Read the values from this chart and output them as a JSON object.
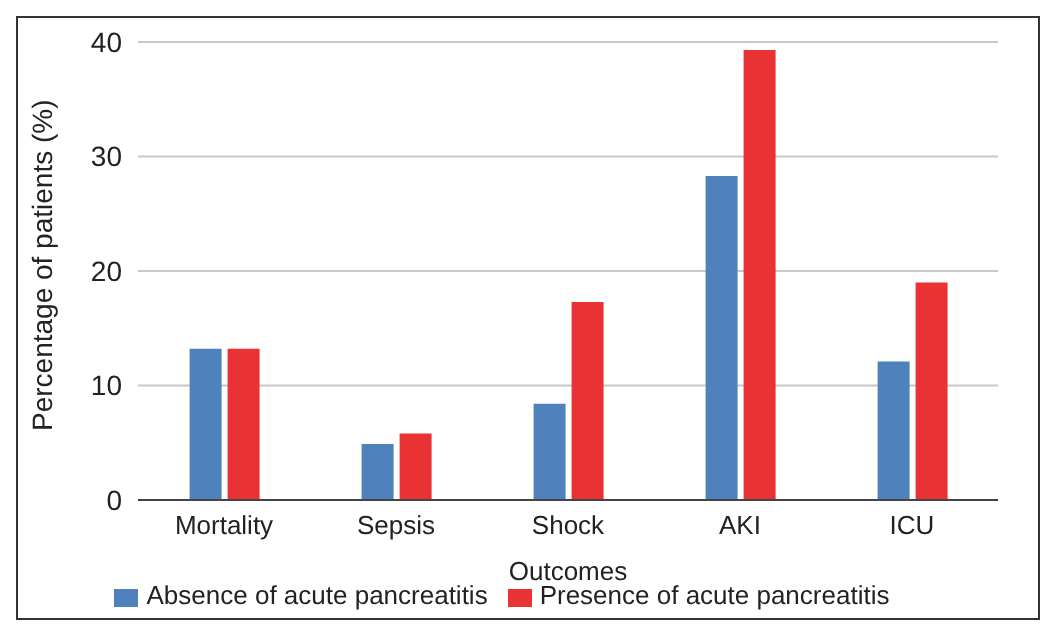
{
  "chart_data": {
    "type": "bar",
    "xlabel": "Outcomes",
    "ylabel": "Percentage of patients (%)",
    "categories": [
      "Mortality",
      "Sepsis",
      "Shock",
      "AKI",
      "ICU"
    ],
    "series": [
      {
        "name": "Absence of acute pancreatitis",
        "color": "#4f81bd",
        "values": [
          13.2,
          4.9,
          8.4,
          28.3,
          12.1
        ]
      },
      {
        "name": "Presence of acute pancreatitis",
        "color": "#e83233",
        "values": [
          13.2,
          5.8,
          17.3,
          39.3,
          19.0
        ]
      }
    ],
    "ylim": [
      0,
      40
    ],
    "yticks": [
      0,
      10,
      20,
      30,
      40
    ],
    "grid": "y",
    "legend": "bottom"
  }
}
